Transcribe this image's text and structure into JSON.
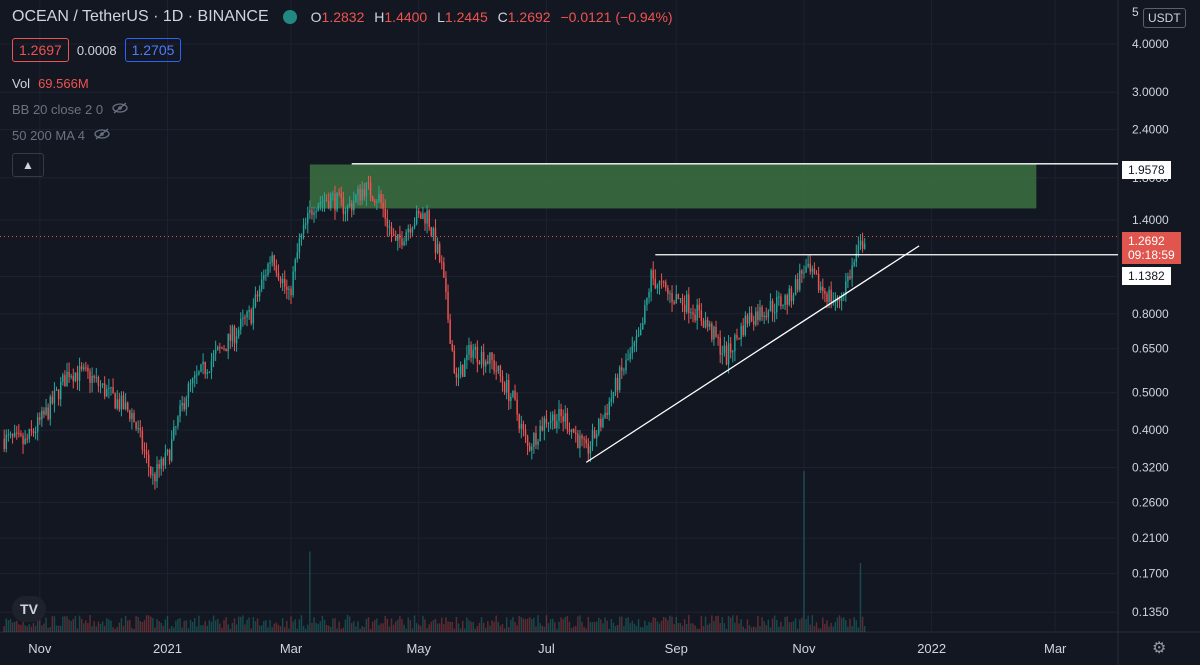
{
  "header": {
    "symbol": "OCEAN / TetherUS",
    "interval": "1D",
    "exchange": "BINANCE",
    "ohlc": {
      "o_label": "O",
      "o": "1.2832",
      "h_label": "H",
      "h": "1.4400",
      "l_label": "L",
      "l": "1.2445",
      "c_label": "C",
      "c": "1.2692",
      "change": "−0.0121 (−0.94%)"
    },
    "bid": "1.2697",
    "spread": "0.0008",
    "ask": "1.2705",
    "vol_label": "Vol",
    "vol": "69.566M",
    "indicator1": "BB 20 close 2 0",
    "indicator2": "50 200 MA 4",
    "logo": "TV"
  },
  "axis": {
    "currency": "USDT",
    "top_partial": "5",
    "price_ticks": [
      "4.0000",
      "3.0000",
      "2.4000",
      "1.8000",
      "1.4000",
      "1.0000",
      "0.8000",
      "0.6500",
      "0.5000",
      "0.4000",
      "0.3200",
      "0.2600",
      "0.2100",
      "0.1700",
      "0.1350"
    ],
    "time_ticks": [
      "Nov",
      "2021",
      "Mar",
      "May",
      "Jul",
      "Sep",
      "Nov",
      "2022",
      "Mar"
    ]
  },
  "price_tags": {
    "top": "1.9578",
    "last": "1.2692",
    "countdown": "09:18:59",
    "level": "1.1382"
  },
  "colors": {
    "up": "#26a69a",
    "down": "#ef5350",
    "zone": "#3a6b3e",
    "bg": "#131722"
  },
  "chart_data": {
    "type": "candlestick",
    "scale": "log",
    "ylim": [
      0.12,
      5.2
    ],
    "x_range": [
      "2020-10-13",
      "2022-03-31"
    ],
    "close_path": [
      [
        "2020-10-15",
        0.38
      ],
      [
        "2020-10-25",
        0.37
      ],
      [
        "2020-11-05",
        0.45
      ],
      [
        "2020-11-15",
        0.57
      ],
      [
        "2020-11-25",
        0.55
      ],
      [
        "2020-12-05",
        0.49
      ],
      [
        "2020-12-15",
        0.44
      ],
      [
        "2020-12-25",
        0.3
      ],
      [
        "2021-01-01",
        0.34
      ],
      [
        "2021-01-10",
        0.5
      ],
      [
        "2021-01-20",
        0.59
      ],
      [
        "2021-01-30",
        0.68
      ],
      [
        "2021-02-10",
        0.8
      ],
      [
        "2021-02-20",
        1.15
      ],
      [
        "2021-02-28",
        0.88
      ],
      [
        "2021-03-05",
        1.22
      ],
      [
        "2021-03-12",
        1.55
      ],
      [
        "2021-03-20",
        1.6
      ],
      [
        "2021-03-28",
        1.5
      ],
      [
        "2021-04-05",
        1.7
      ],
      [
        "2021-04-12",
        1.6
      ],
      [
        "2021-04-20",
        1.2
      ],
      [
        "2021-04-28",
        1.4
      ],
      [
        "2021-05-05",
        1.45
      ],
      [
        "2021-05-12",
        1.05
      ],
      [
        "2021-05-19",
        0.53
      ],
      [
        "2021-05-26",
        0.65
      ],
      [
        "2021-06-05",
        0.6
      ],
      [
        "2021-06-15",
        0.48
      ],
      [
        "2021-06-22",
        0.36
      ],
      [
        "2021-07-01",
        0.43
      ],
      [
        "2021-07-10",
        0.43
      ],
      [
        "2021-07-20",
        0.35
      ],
      [
        "2021-07-28",
        0.43
      ],
      [
        "2021-08-05",
        0.55
      ],
      [
        "2021-08-15",
        0.7
      ],
      [
        "2021-08-20",
        1.0
      ],
      [
        "2021-08-28",
        0.9
      ],
      [
        "2021-09-07",
        0.85
      ],
      [
        "2021-09-15",
        0.76
      ],
      [
        "2021-09-25",
        0.62
      ],
      [
        "2021-10-05",
        0.78
      ],
      [
        "2021-10-15",
        0.83
      ],
      [
        "2021-10-25",
        0.88
      ],
      [
        "2021-11-01",
        1.05
      ],
      [
        "2021-11-08",
        0.95
      ],
      [
        "2021-11-17",
        0.85
      ],
      [
        "2021-11-24",
        1.05
      ],
      [
        "2021-11-30",
        1.27
      ]
    ],
    "volume_scale": "relative",
    "volume_spikes": [
      [
        "2021-03-10",
        0.35
      ],
      [
        "2021-11-01",
        0.7
      ],
      [
        "2021-11-28",
        0.3
      ]
    ],
    "zone": {
      "from": "2021-03-10",
      "to": "2022-02-20",
      "low": 1.5,
      "high": 1.95
    },
    "horizontal_lines": [
      {
        "from": "2021-03-30",
        "value": 1.9578
      },
      {
        "from": "2021-08-22",
        "value": 1.1382
      }
    ],
    "trend_line": [
      [
        "2021-07-20",
        0.33
      ],
      [
        "2021-12-26",
        1.2
      ]
    ],
    "last_price": 1.2692
  }
}
